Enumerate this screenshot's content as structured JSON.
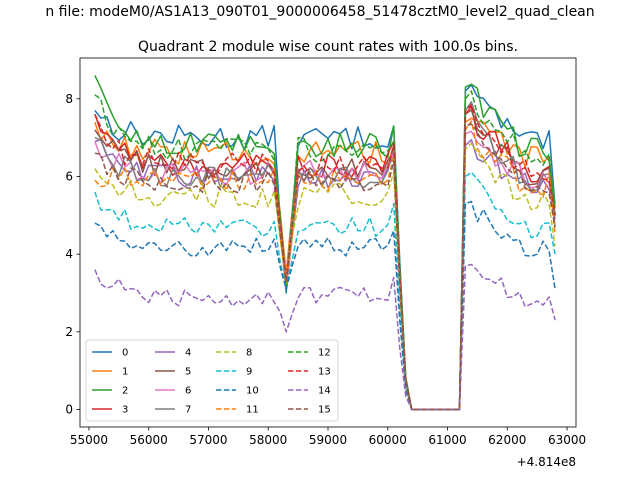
{
  "figure": {
    "suptitle": "n file: modeM0/AS1A13_090T01_9000006458_51478cztM0_level2_quad_clean",
    "offset_label": "+4.814e8"
  },
  "chart_data": {
    "type": "line",
    "title": "Quadrant 2 module wise count rates with 100.0s bins.",
    "xlabel": "",
    "ylabel": "",
    "x_offset": 481400000,
    "xlim": [
      54850,
      63150
    ],
    "ylim": [
      -0.45,
      9.05
    ],
    "grid": false,
    "legend_position": "lower left",
    "legend_columns": 4,
    "x_ticks": [
      55000,
      56000,
      57000,
      58000,
      59000,
      60000,
      61000,
      62000,
      63000
    ],
    "x_tick_labels": [
      "55000",
      "56000",
      "57000",
      "58000",
      "59000",
      "60000",
      "61000",
      "62000",
      "63000"
    ],
    "y_ticks": [
      0,
      2,
      4,
      6,
      8
    ],
    "y_tick_labels": [
      "0",
      "2",
      "4",
      "6",
      "8"
    ],
    "x_segments": [
      {
        "start": 55100,
        "end": 60100,
        "step": 100
      },
      {
        "start": 60200,
        "end": 61200,
        "step": 100
      },
      {
        "start": 61300,
        "end": 62800,
        "step": 100
      }
    ],
    "series": [
      {
        "name": "0",
        "color": "#1f77b4",
        "dash": "solid",
        "level": 7.0,
        "first": 7.7,
        "dip": 3.0,
        "peak": 7.3,
        "restart": 8.2,
        "end": 5.2
      },
      {
        "name": "1",
        "color": "#ff7f0e",
        "dash": "solid",
        "level": 6.6,
        "first": 7.4,
        "dip": 3.5,
        "peak": 6.8,
        "restart": 7.4,
        "end": 5.2
      },
      {
        "name": "2",
        "color": "#2ca02c",
        "dash": "solid",
        "level": 6.8,
        "first": 8.6,
        "dip": 3.2,
        "peak": 7.3,
        "restart": 8.3,
        "end": 5.3
      },
      {
        "name": "3",
        "color": "#d62728",
        "dash": "solid",
        "level": 6.3,
        "first": 7.6,
        "dip": 3.1,
        "peak": 6.9,
        "restart": 7.6,
        "end": 5.0
      },
      {
        "name": "4",
        "color": "#9467bd",
        "dash": "solid",
        "level": 6.0,
        "first": 6.9,
        "dip": 3.1,
        "peak": 6.5,
        "restart": 6.8,
        "end": 4.9
      },
      {
        "name": "5",
        "color": "#8c564b",
        "dash": "solid",
        "level": 6.2,
        "first": 7.2,
        "dip": 3.3,
        "peak": 6.6,
        "restart": 7.6,
        "end": 5.0
      },
      {
        "name": "6",
        "color": "#e377c2",
        "dash": "solid",
        "level": 6.1,
        "first": 6.9,
        "dip": 3.3,
        "peak": 6.6,
        "restart": 7.1,
        "end": 5.0
      },
      {
        "name": "7",
        "color": "#7f7f7f",
        "dash": "solid",
        "level": 6.0,
        "first": 7.0,
        "dip": 3.2,
        "peak": 6.8,
        "restart": 7.7,
        "end": 4.7
      },
      {
        "name": "8",
        "color": "#bcbd22",
        "dash": "dashed",
        "level": 5.5,
        "first": 6.2,
        "dip": 3.3,
        "peak": 6.1,
        "restart": 6.7,
        "end": 4.2
      },
      {
        "name": "9",
        "color": "#17becf",
        "dash": "dashed",
        "level": 4.7,
        "first": 5.6,
        "dip": 3.1,
        "peak": 5.3,
        "restart": 6.0,
        "end": 4.0
      },
      {
        "name": "10",
        "color": "#1f77b4",
        "dash": "dashed",
        "level": 4.2,
        "first": 4.8,
        "dip": 3.1,
        "peak": 4.6,
        "restart": 5.3,
        "end": 3.1
      },
      {
        "name": "11",
        "color": "#ff7f0e",
        "dash": "dashed",
        "level": 5.9,
        "first": 5.9,
        "dip": 3.2,
        "peak": 6.5,
        "restart": 7.2,
        "end": 4.5
      },
      {
        "name": "12",
        "color": "#2ca02c",
        "dash": "dashed",
        "level": 6.7,
        "first": 8.1,
        "dip": 3.2,
        "peak": 6.9,
        "restart": 8.0,
        "end": 5.0
      },
      {
        "name": "13",
        "color": "#d62728",
        "dash": "dashed",
        "level": 6.3,
        "first": 7.6,
        "dip": 3.3,
        "peak": 6.8,
        "restart": 7.7,
        "end": 5.0
      },
      {
        "name": "14",
        "color": "#9467bd",
        "dash": "dashed",
        "level": 2.9,
        "first": 3.6,
        "dip": 2.0,
        "peak": 3.4,
        "restart": 3.7,
        "end": 2.3
      },
      {
        "name": "15",
        "color": "#8c564b",
        "dash": "dashed",
        "level": 5.9,
        "first": 6.6,
        "dip": 3.3,
        "peak": 6.4,
        "restart": 7.3,
        "end": 4.7
      }
    ]
  }
}
